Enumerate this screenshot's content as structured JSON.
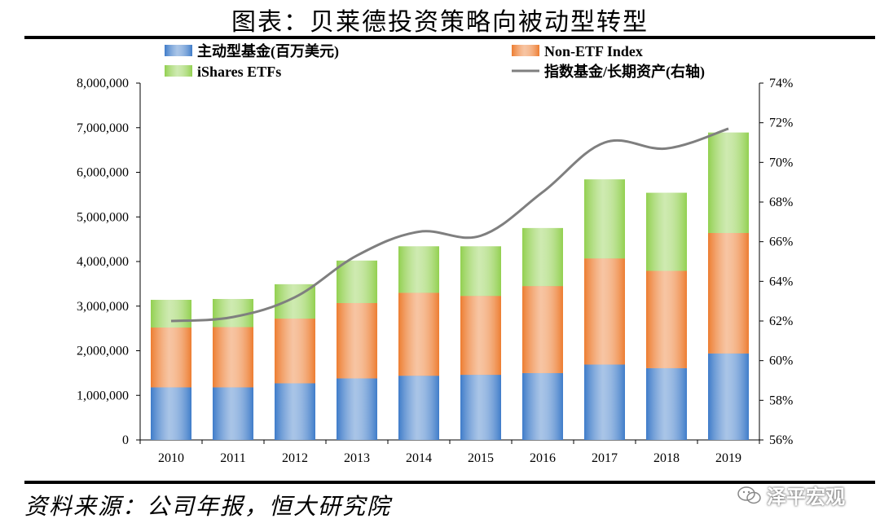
{
  "header": {
    "title": "图表：贝莱德投资策略向被动型转型"
  },
  "footer": {
    "source": "资料来源：公司年报，恒大研究院",
    "watermark": "泽平宏观"
  },
  "chart_data": {
    "type": "bar",
    "stacked": true,
    "categories": [
      "2010",
      "2011",
      "2012",
      "2013",
      "2014",
      "2015",
      "2016",
      "2017",
      "2018",
      "2019"
    ],
    "series": [
      {
        "name": "主动型基金(百万美元)",
        "kind": "bar",
        "color": "#3f7cc9",
        "values": [
          1180000,
          1180000,
          1270000,
          1380000,
          1440000,
          1460000,
          1500000,
          1690000,
          1610000,
          1940000
        ]
      },
      {
        "name": "Non-ETF Index",
        "kind": "bar",
        "color": "#ed7d31",
        "values": [
          1340000,
          1350000,
          1450000,
          1690000,
          1860000,
          1770000,
          1950000,
          2380000,
          2180000,
          2700000
        ]
      },
      {
        "name": "iShares ETFs",
        "kind": "bar",
        "color": "#92d050",
        "values": [
          620000,
          630000,
          770000,
          950000,
          1040000,
          1110000,
          1300000,
          1770000,
          1750000,
          2250000
        ]
      },
      {
        "name": "指数基金/长期资产(右轴)",
        "kind": "line",
        "axis": "right",
        "color": "#7f7f7f",
        "values": [
          62.0,
          62.2,
          63.2,
          65.3,
          66.5,
          66.3,
          68.5,
          71.0,
          70.7,
          71.7
        ]
      }
    ],
    "y_left": {
      "min": 0,
      "max": 8000000,
      "ticks": [
        "0",
        "1,000,000",
        "2,000,000",
        "3,000,000",
        "4,000,000",
        "5,000,000",
        "6,000,000",
        "7,000,000",
        "8,000,000"
      ]
    },
    "y_right": {
      "min": 56,
      "max": 74,
      "ticks": [
        "56%",
        "58%",
        "60%",
        "62%",
        "64%",
        "66%",
        "68%",
        "70%",
        "72%",
        "74%"
      ]
    },
    "legend_position": "top",
    "grid": false
  }
}
